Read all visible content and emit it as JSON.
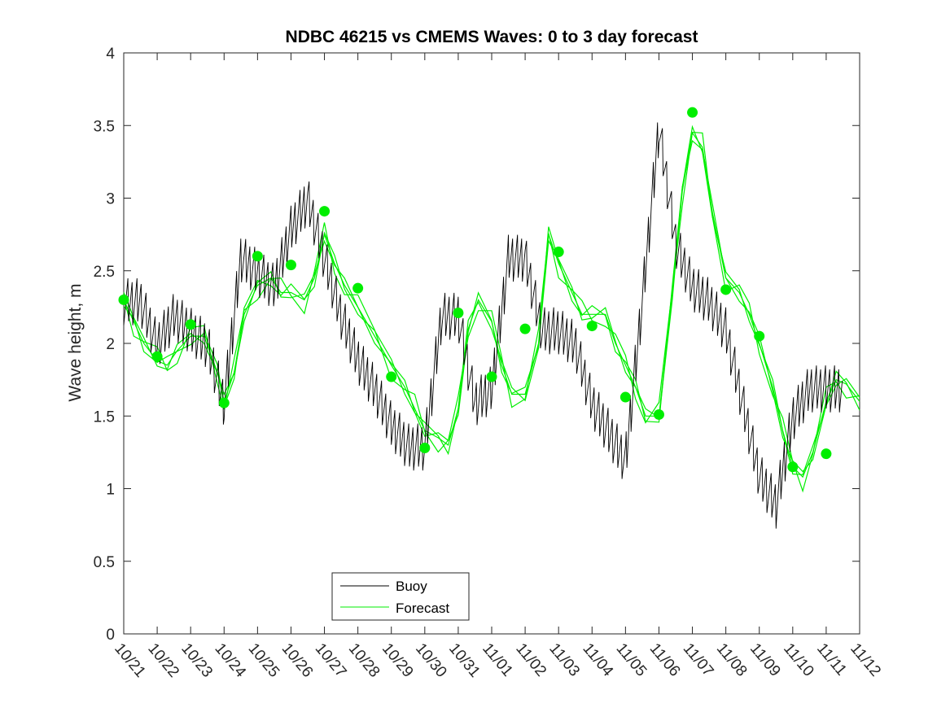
{
  "chart_data": {
    "type": "line",
    "title": "NDBC 46215 vs CMEMS Waves: 0 to 3 day forecast",
    "xlabel": "",
    "ylabel": "Wave height, m",
    "ylim": [
      0,
      4
    ],
    "yticks": [
      "0",
      "0.5",
      "1",
      "1.5",
      "2",
      "2.5",
      "3",
      "3.5",
      "4"
    ],
    "xticks": [
      "10/21",
      "10/22",
      "10/23",
      "10/24",
      "10/25",
      "10/26",
      "10/27",
      "10/28",
      "10/29",
      "10/30",
      "10/31",
      "11/01",
      "11/02",
      "11/03",
      "11/04",
      "11/05",
      "11/06",
      "11/07",
      "11/08",
      "11/09",
      "11/10",
      "11/11",
      "11/12"
    ],
    "xlim": [
      0,
      22
    ],
    "legend": {
      "placement": "bottom-left",
      "entries": [
        "Buoy",
        "Forecast"
      ]
    },
    "colors": {
      "buoy": "#000000",
      "forecast": "#00ee00",
      "marker": "#00ee00"
    },
    "series": [
      {
        "name": "Buoy",
        "x": [
          0,
          0.5,
          1,
          1.5,
          2,
          2.5,
          3,
          3.5,
          4,
          4.5,
          5,
          5.5,
          6,
          6.5,
          7,
          7.5,
          8,
          8.5,
          9,
          9.5,
          10,
          10.5,
          11,
          11.5,
          12,
          12.5,
          13,
          13.5,
          14,
          14.5,
          15,
          15.5,
          16,
          16.5,
          17,
          17.5,
          18,
          18.5,
          19,
          19.5,
          20,
          20.5,
          21,
          21.5
        ],
        "values": [
          2.3,
          2.3,
          2.0,
          2.2,
          2.1,
          2.0,
          1.6,
          2.6,
          2.5,
          2.4,
          2.8,
          3.0,
          2.6,
          2.2,
          1.9,
          1.7,
          1.45,
          1.3,
          1.3,
          2.2,
          2.2,
          1.6,
          1.7,
          2.6,
          2.6,
          2.1,
          2.1,
          2.0,
          1.6,
          1.4,
          1.2,
          2.3,
          3.5,
          2.7,
          2.4,
          2.3,
          2.1,
          1.6,
          1.1,
          0.9,
          1.5,
          1.7,
          1.7,
          1.7
        ]
      },
      {
        "name": "Forecast",
        "x": [
          0,
          0.3,
          0.6,
          1,
          1.3,
          1.6,
          2,
          2.4,
          2.8,
          3,
          3.3,
          3.6,
          4,
          4.4,
          4.7,
          5,
          5.4,
          5.7,
          6,
          6.3,
          6.6,
          7,
          7.5,
          8,
          8.4,
          8.7,
          9,
          9.4,
          9.7,
          10,
          10.3,
          10.6,
          11,
          11.3,
          11.6,
          12,
          12.4,
          12.7,
          13,
          13.4,
          13.7,
          14,
          14.4,
          14.7,
          15,
          15.3,
          15.6,
          16,
          16.4,
          16.7,
          17,
          17.3,
          17.6,
          18,
          18.4,
          18.7,
          19,
          19.4,
          19.7,
          20,
          20.3,
          20.6,
          21,
          21.3,
          21.6,
          22
        ],
        "values": [
          2.3,
          2.15,
          2.0,
          1.88,
          1.85,
          1.95,
          2.05,
          2.05,
          1.8,
          1.6,
          1.8,
          2.2,
          2.4,
          2.45,
          2.35,
          2.35,
          2.3,
          2.45,
          2.75,
          2.55,
          2.4,
          2.25,
          2.05,
          1.85,
          1.7,
          1.55,
          1.4,
          1.35,
          1.3,
          1.55,
          2.1,
          2.3,
          2.15,
          1.85,
          1.65,
          1.65,
          2.0,
          2.75,
          2.55,
          2.35,
          2.2,
          2.2,
          2.2,
          2.0,
          1.85,
          1.7,
          1.5,
          1.5,
          2.35,
          3.05,
          3.45,
          3.35,
          2.9,
          2.45,
          2.35,
          2.2,
          2.0,
          1.7,
          1.4,
          1.15,
          1.08,
          1.25,
          1.6,
          1.75,
          1.72,
          1.6
        ]
      },
      {
        "name": "Forecast markers",
        "x": [
          0,
          1,
          2,
          3,
          4,
          5,
          6,
          7,
          8,
          9,
          10,
          11,
          12,
          13,
          14,
          15,
          16,
          17,
          18,
          19,
          20,
          21
        ],
        "values": [
          2.3,
          1.91,
          2.13,
          1.59,
          2.6,
          2.54,
          2.91,
          2.38,
          1.77,
          1.28,
          2.21,
          1.77,
          2.1,
          2.63,
          2.12,
          1.63,
          1.51,
          3.59,
          2.37,
          2.05,
          1.15,
          1.24
        ]
      }
    ]
  }
}
